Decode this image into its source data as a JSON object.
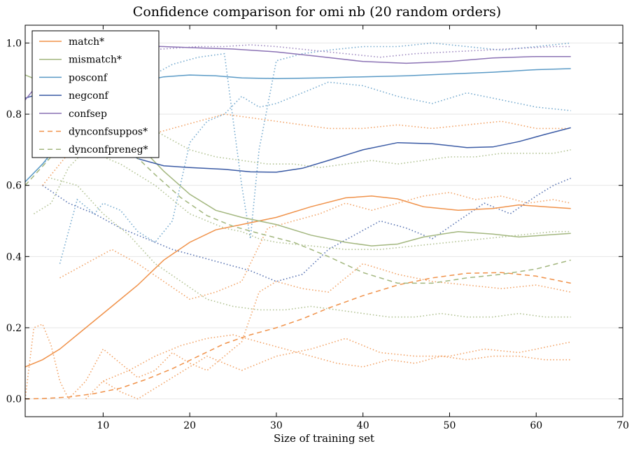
{
  "chart_data": {
    "type": "line",
    "title": "Confidence comparison for omi nb (20 random orders)",
    "xlabel": "Size of training set",
    "ylabel": "",
    "xlim": [
      1,
      70
    ],
    "ylim": [
      -0.05,
      1.05
    ],
    "xticks": [
      10,
      20,
      30,
      40,
      50,
      60,
      70
    ],
    "yticks": [
      0.0,
      0.2,
      0.4,
      0.6,
      0.8,
      1.0
    ],
    "grid": "horizontal",
    "legend_position": "top-left",
    "series": [
      {
        "name": "match*",
        "style": "solid",
        "color": "#f0924a",
        "x": [
          1,
          3,
          5,
          8,
          11,
          14,
          17,
          20,
          23,
          26,
          30,
          34,
          38,
          41,
          44,
          47,
          51,
          55,
          58,
          61,
          64
        ],
        "y": [
          0.09,
          0.11,
          0.14,
          0.2,
          0.26,
          0.32,
          0.39,
          0.44,
          0.475,
          0.49,
          0.51,
          0.54,
          0.565,
          0.57,
          0.562,
          0.54,
          0.53,
          0.535,
          0.545,
          0.54,
          0.535
        ]
      },
      {
        "name": "mismatch*",
        "style": "solid",
        "color": "#a3b77f",
        "x": [
          1,
          3,
          5,
          7,
          9,
          11,
          13,
          15,
          17,
          20,
          23,
          26,
          30,
          34,
          38,
          41,
          44,
          47,
          51,
          55,
          58,
          61,
          64
        ],
        "y": [
          0.91,
          0.89,
          0.85,
          0.8,
          0.76,
          0.74,
          0.72,
          0.69,
          0.64,
          0.575,
          0.53,
          0.51,
          0.49,
          0.46,
          0.44,
          0.43,
          0.435,
          0.455,
          0.47,
          0.463,
          0.455,
          0.46,
          0.465
        ]
      },
      {
        "name": "posconf",
        "style": "solid",
        "color": "#5a9ac6",
        "x": [
          1,
          3,
          5,
          8,
          11,
          14,
          17,
          20,
          23,
          26,
          30,
          35,
          40,
          45,
          50,
          55,
          60,
          64
        ],
        "y": [
          0.61,
          0.66,
          0.72,
          0.8,
          0.86,
          0.89,
          0.905,
          0.91,
          0.908,
          0.902,
          0.9,
          0.902,
          0.905,
          0.908,
          0.913,
          0.918,
          0.925,
          0.928
        ]
      },
      {
        "name": "negconf",
        "style": "solid",
        "color": "#3b5ba5",
        "x": [
          1,
          3,
          5,
          8,
          11,
          14,
          17,
          20,
          24,
          27,
          30,
          33,
          36,
          40,
          44,
          48,
          52,
          55,
          58,
          61,
          64
        ],
        "y": [
          0.845,
          0.86,
          0.85,
          0.8,
          0.73,
          0.675,
          0.655,
          0.65,
          0.645,
          0.638,
          0.637,
          0.648,
          0.67,
          0.7,
          0.72,
          0.717,
          0.706,
          0.708,
          0.723,
          0.743,
          0.762
        ]
      },
      {
        "name": "confsep",
        "style": "solid",
        "color": "#8c73b5",
        "x": [
          1,
          3,
          5,
          8,
          11,
          14,
          17,
          20,
          25,
          30,
          35,
          40,
          45,
          50,
          55,
          60,
          64
        ],
        "y": [
          0.84,
          0.9,
          0.95,
          0.98,
          0.99,
          0.992,
          0.99,
          0.987,
          0.983,
          0.975,
          0.962,
          0.948,
          0.943,
          0.948,
          0.958,
          0.962,
          0.962
        ]
      },
      {
        "name": "dynconfsuppos*",
        "style": "dashed",
        "color": "#f0924a",
        "x": [
          1,
          3,
          6,
          9,
          12,
          15,
          18,
          21,
          24,
          27,
          30,
          33,
          36,
          40,
          44,
          48,
          52,
          56,
          60,
          64
        ],
        "y": [
          0.0,
          0.001,
          0.005,
          0.015,
          0.03,
          0.055,
          0.085,
          0.12,
          0.155,
          0.18,
          0.2,
          0.225,
          0.255,
          0.29,
          0.32,
          0.34,
          0.353,
          0.355,
          0.345,
          0.325
        ]
      },
      {
        "name": "dynconfpreneg*",
        "style": "dashed",
        "color": "#a3b77f",
        "x": [
          1,
          4,
          7,
          10,
          13,
          16,
          19,
          22,
          25,
          28,
          32,
          36,
          40,
          44,
          48,
          52,
          56,
          60,
          64
        ],
        "y": [
          0.6,
          0.68,
          0.735,
          0.735,
          0.7,
          0.63,
          0.565,
          0.515,
          0.485,
          0.465,
          0.44,
          0.4,
          0.355,
          0.325,
          0.325,
          0.34,
          0.35,
          0.365,
          0.39
        ]
      }
    ],
    "unlabeled_runs": [
      {
        "style": "dotted",
        "color": "#5a9ac6",
        "x": [
          5,
          7,
          9,
          10,
          12,
          14,
          16,
          18,
          20,
          22,
          24,
          26,
          28,
          30,
          33,
          36,
          40,
          44,
          48,
          52,
          56,
          60,
          64
        ],
        "y": [
          0.38,
          0.56,
          0.52,
          0.55,
          0.53,
          0.47,
          0.44,
          0.5,
          0.72,
          0.78,
          0.8,
          0.85,
          0.82,
          0.83,
          0.86,
          0.89,
          0.88,
          0.85,
          0.83,
          0.86,
          0.84,
          0.82,
          0.81
        ]
      },
      {
        "style": "dotted",
        "color": "#5a9ac6",
        "x": [
          3,
          6,
          9,
          12,
          15,
          18,
          21,
          24,
          26,
          27,
          28,
          30,
          33,
          36,
          40,
          44,
          48,
          52,
          56,
          60,
          64
        ],
        "y": [
          0.66,
          0.72,
          0.8,
          0.86,
          0.9,
          0.94,
          0.96,
          0.97,
          0.6,
          0.45,
          0.7,
          0.95,
          0.97,
          0.98,
          0.99,
          0.99,
          1.0,
          0.99,
          0.98,
          0.99,
          1.0
        ]
      },
      {
        "style": "dotted",
        "color": "#3b5ba5",
        "x": [
          3,
          6,
          9,
          12,
          15,
          18,
          21,
          24,
          27,
          30,
          33,
          36,
          39,
          42,
          45,
          48,
          51,
          54,
          57,
          60,
          62,
          64
        ],
        "y": [
          0.6,
          0.55,
          0.52,
          0.48,
          0.45,
          0.42,
          0.4,
          0.38,
          0.36,
          0.33,
          0.35,
          0.42,
          0.46,
          0.5,
          0.48,
          0.45,
          0.5,
          0.55,
          0.52,
          0.57,
          0.6,
          0.62
        ]
      },
      {
        "style": "dotted",
        "color": "#8c73b5",
        "x": [
          3,
          6,
          9,
          12,
          15,
          18,
          21,
          24,
          27,
          30,
          34,
          38,
          42,
          46,
          50,
          54,
          58,
          62,
          64
        ],
        "y": [
          0.88,
          0.93,
          0.96,
          0.97,
          0.98,
          0.985,
          0.99,
          0.99,
          0.995,
          0.99,
          0.98,
          0.97,
          0.96,
          0.97,
          0.975,
          0.98,
          0.985,
          0.99,
          0.99
        ]
      },
      {
        "style": "dotted",
        "color": "#f0924a",
        "x": [
          1,
          2,
          3,
          4,
          5,
          6,
          8,
          10,
          12,
          14,
          16,
          18,
          20,
          22,
          24,
          26,
          28,
          30,
          33,
          36,
          40,
          44,
          48,
          52,
          56,
          60,
          64
        ],
        "y": [
          0.0,
          0.2,
          0.21,
          0.15,
          0.05,
          0.0,
          0.05,
          0.14,
          0.1,
          0.06,
          0.08,
          0.13,
          0.1,
          0.08,
          0.12,
          0.16,
          0.3,
          0.33,
          0.31,
          0.3,
          0.38,
          0.35,
          0.33,
          0.32,
          0.31,
          0.32,
          0.3
        ]
      },
      {
        "style": "dotted",
        "color": "#f0924a",
        "x": [
          3,
          6,
          9,
          12,
          15,
          18,
          21,
          24,
          27,
          30,
          33,
          36,
          40,
          44,
          48,
          52,
          56,
          60,
          64
        ],
        "y": [
          0.6,
          0.69,
          0.7,
          0.72,
          0.74,
          0.76,
          0.78,
          0.8,
          0.79,
          0.78,
          0.77,
          0.76,
          0.76,
          0.77,
          0.76,
          0.77,
          0.78,
          0.76,
          0.76
        ]
      },
      {
        "style": "dotted",
        "color": "#f0924a",
        "x": [
          5,
          8,
          11,
          14,
          17,
          20,
          23,
          26,
          29,
          32,
          35,
          38,
          41,
          44,
          47,
          50,
          53,
          56,
          59,
          62,
          64
        ],
        "y": [
          0.34,
          0.38,
          0.42,
          0.38,
          0.33,
          0.28,
          0.3,
          0.33,
          0.48,
          0.5,
          0.52,
          0.55,
          0.53,
          0.55,
          0.57,
          0.58,
          0.56,
          0.57,
          0.55,
          0.56,
          0.55
        ]
      },
      {
        "style": "dotted",
        "color": "#f0924a",
        "x": [
          8,
          10,
          12,
          14,
          16,
          18,
          20,
          22,
          24,
          26,
          28,
          30,
          34,
          38,
          42,
          46,
          50,
          54,
          58,
          62,
          64
        ],
        "y": [
          0.0,
          0.05,
          0.02,
          0.0,
          0.03,
          0.06,
          0.09,
          0.12,
          0.1,
          0.08,
          0.1,
          0.12,
          0.14,
          0.17,
          0.13,
          0.12,
          0.12,
          0.14,
          0.13,
          0.15,
          0.16
        ]
      },
      {
        "style": "dotted",
        "color": "#f0924a",
        "x": [
          10,
          13,
          16,
          19,
          22,
          25,
          28,
          31,
          34,
          37,
          40,
          43,
          46,
          49,
          52,
          55,
          58,
          61,
          64
        ],
        "y": [
          0.05,
          0.08,
          0.12,
          0.15,
          0.17,
          0.18,
          0.16,
          0.14,
          0.12,
          0.1,
          0.09,
          0.11,
          0.1,
          0.12,
          0.11,
          0.12,
          0.12,
          0.11,
          0.11
        ]
      },
      {
        "style": "dotted",
        "color": "#a3b77f",
        "x": [
          2,
          4,
          6,
          8,
          10,
          12,
          14,
          16,
          18,
          20,
          22,
          24,
          26,
          28,
          30,
          34,
          38,
          42,
          46,
          50,
          54,
          58,
          62,
          64
        ],
        "y": [
          0.52,
          0.55,
          0.65,
          0.7,
          0.68,
          0.66,
          0.63,
          0.6,
          0.56,
          0.52,
          0.5,
          0.48,
          0.47,
          0.45,
          0.44,
          0.43,
          0.42,
          0.42,
          0.43,
          0.44,
          0.45,
          0.46,
          0.47,
          0.47
        ]
      },
      {
        "style": "dotted",
        "color": "#a3b77f",
        "x": [
          4,
          7,
          10,
          13,
          16,
          19,
          22,
          25,
          28,
          31,
          34,
          37,
          40,
          43,
          46,
          49,
          52,
          55,
          58,
          61,
          64
        ],
        "y": [
          0.62,
          0.6,
          0.52,
          0.46,
          0.38,
          0.33,
          0.28,
          0.26,
          0.25,
          0.25,
          0.26,
          0.25,
          0.24,
          0.23,
          0.23,
          0.24,
          0.23,
          0.23,
          0.24,
          0.23,
          0.23
        ]
      },
      {
        "style": "dotted",
        "color": "#a3b77f",
        "x": [
          8,
          11,
          14,
          17,
          20,
          23,
          26,
          29,
          32,
          35,
          38,
          41,
          44,
          47,
          50,
          53,
          56,
          59,
          62,
          64
        ],
        "y": [
          0.85,
          0.82,
          0.78,
          0.74,
          0.7,
          0.68,
          0.67,
          0.66,
          0.66,
          0.65,
          0.66,
          0.67,
          0.66,
          0.67,
          0.68,
          0.68,
          0.69,
          0.69,
          0.69,
          0.7
        ]
      }
    ]
  }
}
